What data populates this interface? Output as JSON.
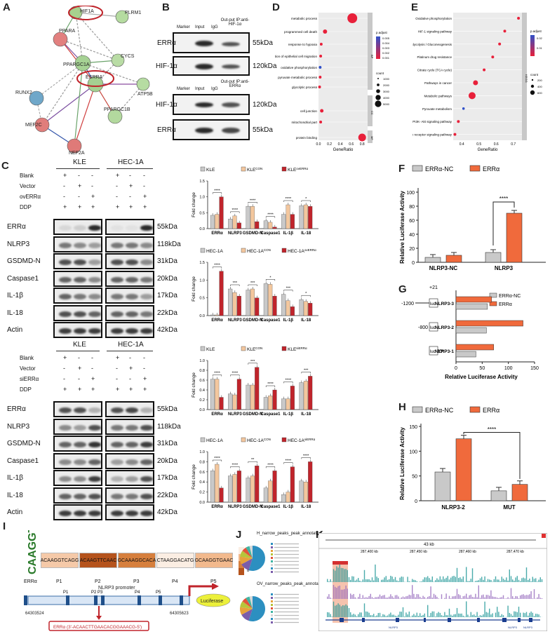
{
  "panels": {
    "A": "A",
    "B": "B",
    "C": "C",
    "D": "D",
    "E": "E",
    "F": "F",
    "G": "G",
    "H": "H",
    "I": "I",
    "J": "J",
    "K": "K"
  },
  "panelA": {
    "nodes": [
      "HIF1A",
      "PLRM1",
      "PPARA",
      "CYCS",
      "RUNX2",
      "PPARGC1A",
      "ESRRA",
      "ATP5B",
      "MEF2C",
      "PPARGC1B",
      "NEF2A"
    ]
  },
  "panelB": {
    "header": [
      "Marker",
      "Input",
      "IgG",
      "Out-put IP:anti-HIF-1α"
    ],
    "header2": [
      "Marker",
      "Input",
      "IgG",
      "Out-put IP:anti-ERRα"
    ],
    "rows1": [
      "ERRα",
      "HIF-1α"
    ],
    "kda1": [
      "55kDa",
      "120kDa"
    ],
    "rows2": [
      "HIF-1α",
      "ERRα"
    ],
    "kda2": [
      "120kDa",
      "55kDa"
    ]
  },
  "panelC": {
    "cells": [
      "KLE",
      "HEC-1A"
    ],
    "treat_top": [
      "Blank",
      "Vector",
      "ovERRα",
      "DDP"
    ],
    "treat_bottom": [
      "Blank",
      "Vector",
      "siERRα",
      "DDP"
    ],
    "signs_blank": [
      "+",
      "-",
      "-"
    ],
    "signs_vector": [
      "-",
      "+",
      "-"
    ],
    "signs_third": [
      "-",
      "-",
      "+"
    ],
    "signs_ddp": [
      "+",
      "+",
      "+"
    ],
    "proteins": [
      "ERRα",
      "NLRP3",
      "GSDMD-N",
      "Caspase1",
      "IL-1β",
      "IL-18",
      "Actin"
    ],
    "kda": [
      "55kDa",
      "118kDa",
      "31kDa",
      "20kDa",
      "17kDa",
      "22kDa",
      "42kDa"
    ]
  },
  "bar_charts_C": {
    "ylabel": "Fold change",
    "categories": [
      "ERRα",
      "NLRP3",
      "GSDMD-N",
      "Caspase1",
      "IL-1β",
      "IL-18"
    ],
    "colors": [
      "#c9c9c9",
      "#f3c79e",
      "#c0242b"
    ],
    "charts": [
      {
        "type": "bar",
        "ylim": [
          0,
          1.5
        ],
        "yticks": [
          "0.0",
          "0.5",
          "1.0",
          "1.5"
        ],
        "legend": [
          "KLE",
          "KLE",
          "KLE"
        ],
        "legend_sup": [
          "",
          "CON",
          "ovERRα"
        ],
        "series": [
          [
            0.42,
            0.3,
            0.7,
            0.25,
            0.45,
            0.72
          ],
          [
            0.45,
            0.4,
            0.7,
            0.2,
            0.75,
            0.75
          ],
          [
            1.0,
            0.18,
            0.22,
            0.05,
            0.45,
            0.7
          ]
        ],
        "sig": [
          "****",
          "****",
          "****",
          "****",
          "****",
          "*"
        ]
      },
      {
        "type": "bar",
        "ylim": [
          0,
          1.5
        ],
        "yticks": [
          "0.0",
          "0.5",
          "1.0",
          "1.5"
        ],
        "legend": [
          "HEC-1A",
          "HEC-1A",
          "HEC-1A"
        ],
        "legend_sup": [
          "",
          "CON",
          "ovERRα"
        ],
        "series": [
          [
            0.02,
            0.75,
            0.72,
            0.9,
            0.6,
            0.45
          ],
          [
            0.02,
            0.65,
            0.75,
            0.88,
            0.42,
            0.4
          ],
          [
            1.25,
            0.55,
            0.5,
            0.55,
            0.25,
            0.35
          ]
        ],
        "sig": [
          "****",
          "***",
          "***",
          "*",
          "***",
          "*"
        ]
      },
      {
        "type": "bar",
        "ylim": [
          0,
          1.0
        ],
        "yticks": [
          "0.0",
          "0.2",
          "0.4",
          "0.6",
          "0.8",
          "1.0"
        ],
        "legend": [
          "KLE",
          "KLE",
          "KLE"
        ],
        "legend_sup": [
          "",
          "CON",
          "siERRα"
        ],
        "series": [
          [
            0.62,
            0.32,
            0.5,
            0.25,
            0.22,
            0.55
          ],
          [
            0.62,
            0.3,
            0.5,
            0.28,
            0.22,
            0.58
          ],
          [
            0.25,
            0.62,
            0.86,
            0.4,
            0.48,
            0.68
          ]
        ],
        "sig": [
          "****",
          "****",
          "***",
          "****",
          "****",
          "***"
        ]
      },
      {
        "type": "bar",
        "ylim": [
          0,
          1.0
        ],
        "yticks": [
          "0.0",
          "0.2",
          "0.4",
          "0.6",
          "0.8",
          "1.0"
        ],
        "legend": [
          "HEC-1A",
          "HEC-1A",
          "HEC-1A"
        ],
        "legend_sup": [
          "",
          "CON",
          "siERRα"
        ],
        "series": [
          [
            0.62,
            0.52,
            0.48,
            0.28,
            0.15,
            0.42
          ],
          [
            0.75,
            0.55,
            0.52,
            0.42,
            0.2,
            0.4
          ],
          [
            0.28,
            0.62,
            0.72,
            0.62,
            0.7,
            0.8
          ]
        ],
        "sig": [
          "****",
          "****",
          "**",
          "****",
          "****",
          "****"
        ]
      }
    ]
  },
  "panelD": {
    "xlabel": "GeneRatio",
    "xticks": [
      "0.0",
      "0.2",
      "0.4",
      "0.6",
      "0.8"
    ],
    "terms": [
      "metabolic process",
      "programmed cell death",
      "response to hypoxia",
      "regulation of epithelial cell migration",
      "oxidative phosphorylation",
      "pyruvate metabolic process",
      "glycolytic process",
      "cell junction",
      "mitochondrial part",
      "protein binding"
    ],
    "ratios": [
      0.62,
      0.12,
      0.05,
      0.04,
      0.03,
      0.03,
      0.02,
      0.06,
      0.04,
      0.8
    ],
    "groups": [
      "BP",
      "CC",
      "MF"
    ],
    "legend_title1": "p.adjust",
    "legend_vals1": [
      "0.005",
      "0.004",
      "0.003",
      "0.002",
      "0.001"
    ],
    "legend_title2": "count",
    "legend_vals2": [
      "1000",
      "2000",
      "3000",
      "4000",
      "5000"
    ]
  },
  "panelE": {
    "xlabel": "GeneRatio",
    "xticks": [
      "0.4",
      "0.5",
      "0.6",
      "0.7"
    ],
    "terms": [
      "Oxidative phosphorylation",
      "HIF-1 signaling pathway",
      "Glycolysis / Gluconeogenesis",
      "Platinum drug resistance",
      "Citrate cycle (TCA cycle)",
      "Pathways in cancer",
      "Metabolic pathways",
      "Pyruvate metabolism",
      "PI3K- Akt signaling pathway",
      "NOD- like receptor signaling pathway"
    ],
    "ratios": [
      0.73,
      0.65,
      0.62,
      0.58,
      0.53,
      0.48,
      0.46,
      0.41,
      0.38,
      0.36
    ],
    "group": "KEGG",
    "legend_title1": "p.adjust",
    "legend_vals1": [
      "0.02",
      "0.01"
    ],
    "legend_title2": "count",
    "legend_vals2": [
      "200",
      "400",
      "600"
    ]
  },
  "panelF": {
    "type": "bar",
    "legend": [
      "ERRα-NC",
      "ERRα"
    ],
    "ylabel": "Relative Luciferase Activity",
    "categories": [
      "NLRP3-NC",
      "NLRP3"
    ],
    "ylim": [
      0,
      100
    ],
    "yticks": [
      "0",
      "20",
      "40",
      "60",
      "80",
      "100"
    ],
    "series": [
      [
        7,
        14
      ],
      [
        10,
        70
      ]
    ],
    "sig": "****"
  },
  "panelG": {
    "type": "bar",
    "legend": [
      "ERRα-NC",
      "ERRα"
    ],
    "xlabel": "Relative Luciferase Activity",
    "categories": [
      "NLRP3-3",
      "NLRP3-2",
      "NLRP3-1"
    ],
    "positions": [
      "-1200",
      "-800",
      "-400"
    ],
    "plus": "+21",
    "luc": "luc",
    "xlim": [
      0,
      150
    ],
    "xticks": [
      "0",
      "50",
      "100",
      "150"
    ],
    "series": [
      [
        60,
        58,
        38
      ],
      [
        68,
        128,
        72
      ]
    ]
  },
  "panelH": {
    "type": "bar",
    "legend": [
      "ERRα-NC",
      "ERRα"
    ],
    "ylabel": "Relative Luciferase Activity",
    "categories": [
      "NLRP3-2",
      "MUT"
    ],
    "ylim": [
      0,
      150
    ],
    "yticks": [
      "0",
      "50",
      "100",
      "150"
    ],
    "series": [
      [
        58,
        20
      ],
      [
        125,
        33
      ]
    ],
    "sig": "****"
  },
  "panelI": {
    "seqs": [
      "ACAAGGTCAGG",
      "ACAAGTTCAAC",
      "GCAAAGGCACA",
      "CTAAGGACATG",
      "GCAAGGTGAAC"
    ],
    "seq_colors": [
      "#f5c9a8",
      "#b5531c",
      "#d67f3d",
      "#fbeee3",
      "#f2b98d"
    ],
    "site_labels": [
      "ERRα",
      "P1",
      "P2",
      "P3",
      "P4",
      "P5"
    ],
    "scale": [
      "5",
      "6",
      "7",
      "8"
    ],
    "promoter": "NLRP3  promoter",
    "luc": "Luciferase",
    "coord_left": "64303524",
    "coord_right": "64305623",
    "motif": "ERRα (3'-ACAACTTGAACACGGAAACG-5')",
    "logo": "CAAGGTCA",
    "promoter_sites": [
      "P1",
      "P2 P3",
      "P4",
      "P5"
    ]
  },
  "panelJ": {
    "title1": "H_narrow_peaks_peak_annotation",
    "title2": "OV_narrow_peaks_peak_annotation"
  },
  "panelK": {
    "scale": "43 kb",
    "coords": [
      "287,400 kb",
      "287,450 kb",
      "287,460 kb",
      "287,470 kb"
    ],
    "genes": [
      "NLRP3",
      "NLRP3",
      "NLRP3"
    ]
  }
}
